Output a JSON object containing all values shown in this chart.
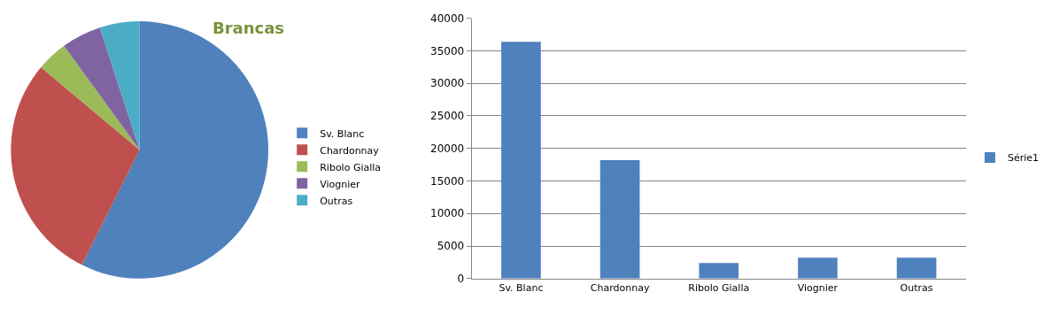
{
  "chart_data": [
    {
      "type": "pie",
      "title": "Brancas",
      "categories": [
        "Sv. Blanc",
        "Chardonnay",
        "Ribolo Gialla",
        "Viognier",
        "Outras"
      ],
      "values": [
        57.4,
        28.7,
        3.9,
        5.0,
        5.0
      ],
      "colors": [
        "#4f81bd",
        "#c0504d",
        "#9bbb59",
        "#8064a2",
        "#4bacc6"
      ],
      "legend": "right"
    },
    {
      "type": "bar",
      "categories": [
        "Sv. Blanc",
        "Chardonnay",
        "Ribolo Gialla",
        "Viognier",
        "Outras"
      ],
      "series": [
        {
          "name": "Série1",
          "color": "#4f81bd",
          "values": [
            36400,
            18200,
            2400,
            3200,
            3200
          ]
        }
      ],
      "ylim": [
        0,
        40000
      ],
      "yticks": [
        0,
        5000,
        10000,
        15000,
        20000,
        25000,
        30000,
        35000,
        40000
      ],
      "grid": "y",
      "legend": "right"
    }
  ]
}
